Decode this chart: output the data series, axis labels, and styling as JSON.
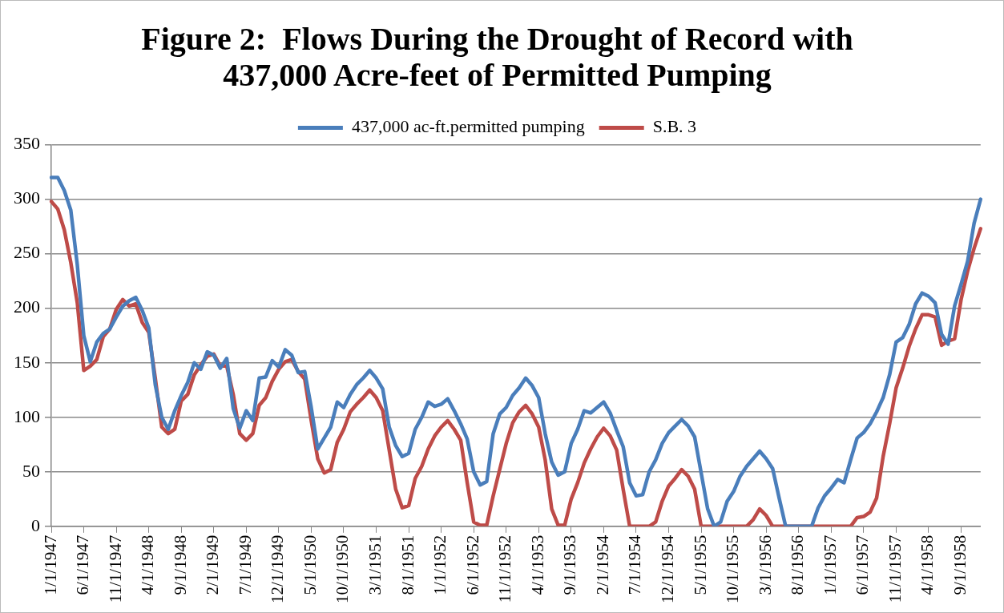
{
  "chart_data": {
    "type": "line",
    "title": "Figure 2:  Flows During the Drought of Record with\n437,000 Acre-feet of Permitted Pumping",
    "categories": [
      "1/1/1947",
      null,
      null,
      null,
      null,
      "6/1/1947",
      null,
      null,
      null,
      null,
      "11/1/1947",
      null,
      null,
      null,
      null,
      "4/1/1948",
      null,
      null,
      null,
      null,
      "9/1/1948",
      null,
      null,
      null,
      null,
      "2/1/1949",
      null,
      null,
      null,
      null,
      "7/1/1949",
      null,
      null,
      null,
      null,
      "12/1/1949",
      null,
      null,
      null,
      null,
      "5/1/1950",
      null,
      null,
      null,
      null,
      "10/1/1950",
      null,
      null,
      null,
      null,
      "3/1/1951",
      null,
      null,
      null,
      null,
      "8/1/1951",
      null,
      null,
      null,
      null,
      "1/1/1952",
      null,
      null,
      null,
      null,
      "6/1/1952",
      null,
      null,
      null,
      null,
      "11/1/1952",
      null,
      null,
      null,
      null,
      "4/1/1953",
      null,
      null,
      null,
      null,
      "9/1/1953",
      null,
      null,
      null,
      null,
      "2/1/1954",
      null,
      null,
      null,
      null,
      "7/1/1954",
      null,
      null,
      null,
      null,
      "12/1/1954",
      null,
      null,
      null,
      null,
      "5/1/1955",
      null,
      null,
      null,
      null,
      "10/1/1955",
      null,
      null,
      null,
      null,
      "3/1/1956",
      null,
      null,
      null,
      null,
      "8/1/1956",
      null,
      null,
      null,
      null,
      "1/1/1957",
      null,
      null,
      null,
      null,
      "6/1/1957",
      null,
      null,
      null,
      null,
      "11/1/1957",
      null,
      null,
      null,
      null,
      "4/1/1958",
      null,
      null,
      null,
      null,
      "9/1/1958",
      null,
      null,
      null
    ],
    "series": [
      {
        "name": "437,000 ac-ft.permitted pumping",
        "color": "#4a7ebb",
        "values": [
          320,
          320,
          308,
          290,
          240,
          175,
          151,
          169,
          177,
          181,
          192,
          202,
          207,
          210,
          198,
          182,
          130,
          100,
          89,
          106,
          120,
          132,
          150,
          144,
          160,
          157,
          145,
          154,
          108,
          90,
          106,
          97,
          136,
          137,
          152,
          146,
          162,
          157,
          141,
          142,
          109,
          71,
          81,
          91,
          114,
          109,
          121,
          130,
          136,
          143,
          136,
          126,
          91,
          74,
          64,
          67,
          89,
          100,
          114,
          110,
          112,
          117,
          106,
          94,
          80,
          50,
          38,
          41,
          85,
          103,
          109,
          120,
          127,
          136,
          129,
          118,
          85,
          59,
          47,
          50,
          76,
          89,
          106,
          104,
          109,
          114,
          104,
          88,
          73,
          40,
          28,
          29,
          50,
          61,
          76,
          86,
          92,
          98,
          92,
          82,
          49,
          16,
          0,
          4,
          23,
          32,
          46,
          55,
          62,
          69,
          62,
          53,
          26,
          0,
          0,
          0,
          0,
          0,
          17,
          28,
          35,
          43,
          40,
          61,
          81,
          86,
          94,
          105,
          118,
          139,
          169,
          173,
          185,
          204,
          214,
          211,
          205,
          176,
          167,
          202,
          222,
          243,
          278,
          300
        ]
      },
      {
        "name": "S.B. 3",
        "color": "#be4b48",
        "values": [
          298,
          291,
          272,
          242,
          205,
          143,
          147,
          153,
          174,
          181,
          199,
          208,
          202,
          204,
          187,
          178,
          136,
          91,
          85,
          89,
          115,
          121,
          139,
          148,
          156,
          158,
          147,
          147,
          121,
          85,
          79,
          85,
          111,
          118,
          133,
          144,
          151,
          153,
          142,
          135,
          97,
          62,
          49,
          52,
          77,
          89,
          105,
          112,
          118,
          125,
          118,
          106,
          70,
          34,
          17,
          19,
          44,
          55,
          71,
          83,
          91,
          97,
          89,
          79,
          40,
          4,
          1,
          1,
          28,
          52,
          76,
          95,
          105,
          111,
          103,
          91,
          61,
          16,
          1,
          1,
          25,
          40,
          58,
          71,
          82,
          90,
          83,
          70,
          34,
          0,
          0,
          0,
          0,
          4,
          23,
          37,
          44,
          52,
          46,
          34,
          0,
          0,
          0,
          0,
          0,
          0,
          0,
          0,
          6,
          16,
          10,
          0,
          0,
          0,
          0,
          0,
          0,
          0,
          0,
          0,
          0,
          0,
          0,
          0,
          8,
          9,
          13,
          26,
          64,
          94,
          127,
          145,
          165,
          181,
          194,
          194,
          192,
          166,
          170,
          172,
          208,
          234,
          255,
          273
        ]
      }
    ],
    "ylim": [
      0,
      350
    ],
    "yticks": [
      0,
      50,
      100,
      150,
      200,
      250,
      300,
      350
    ],
    "grid": "y",
    "legend": "top",
    "marker": "none",
    "line_style": "solid"
  }
}
